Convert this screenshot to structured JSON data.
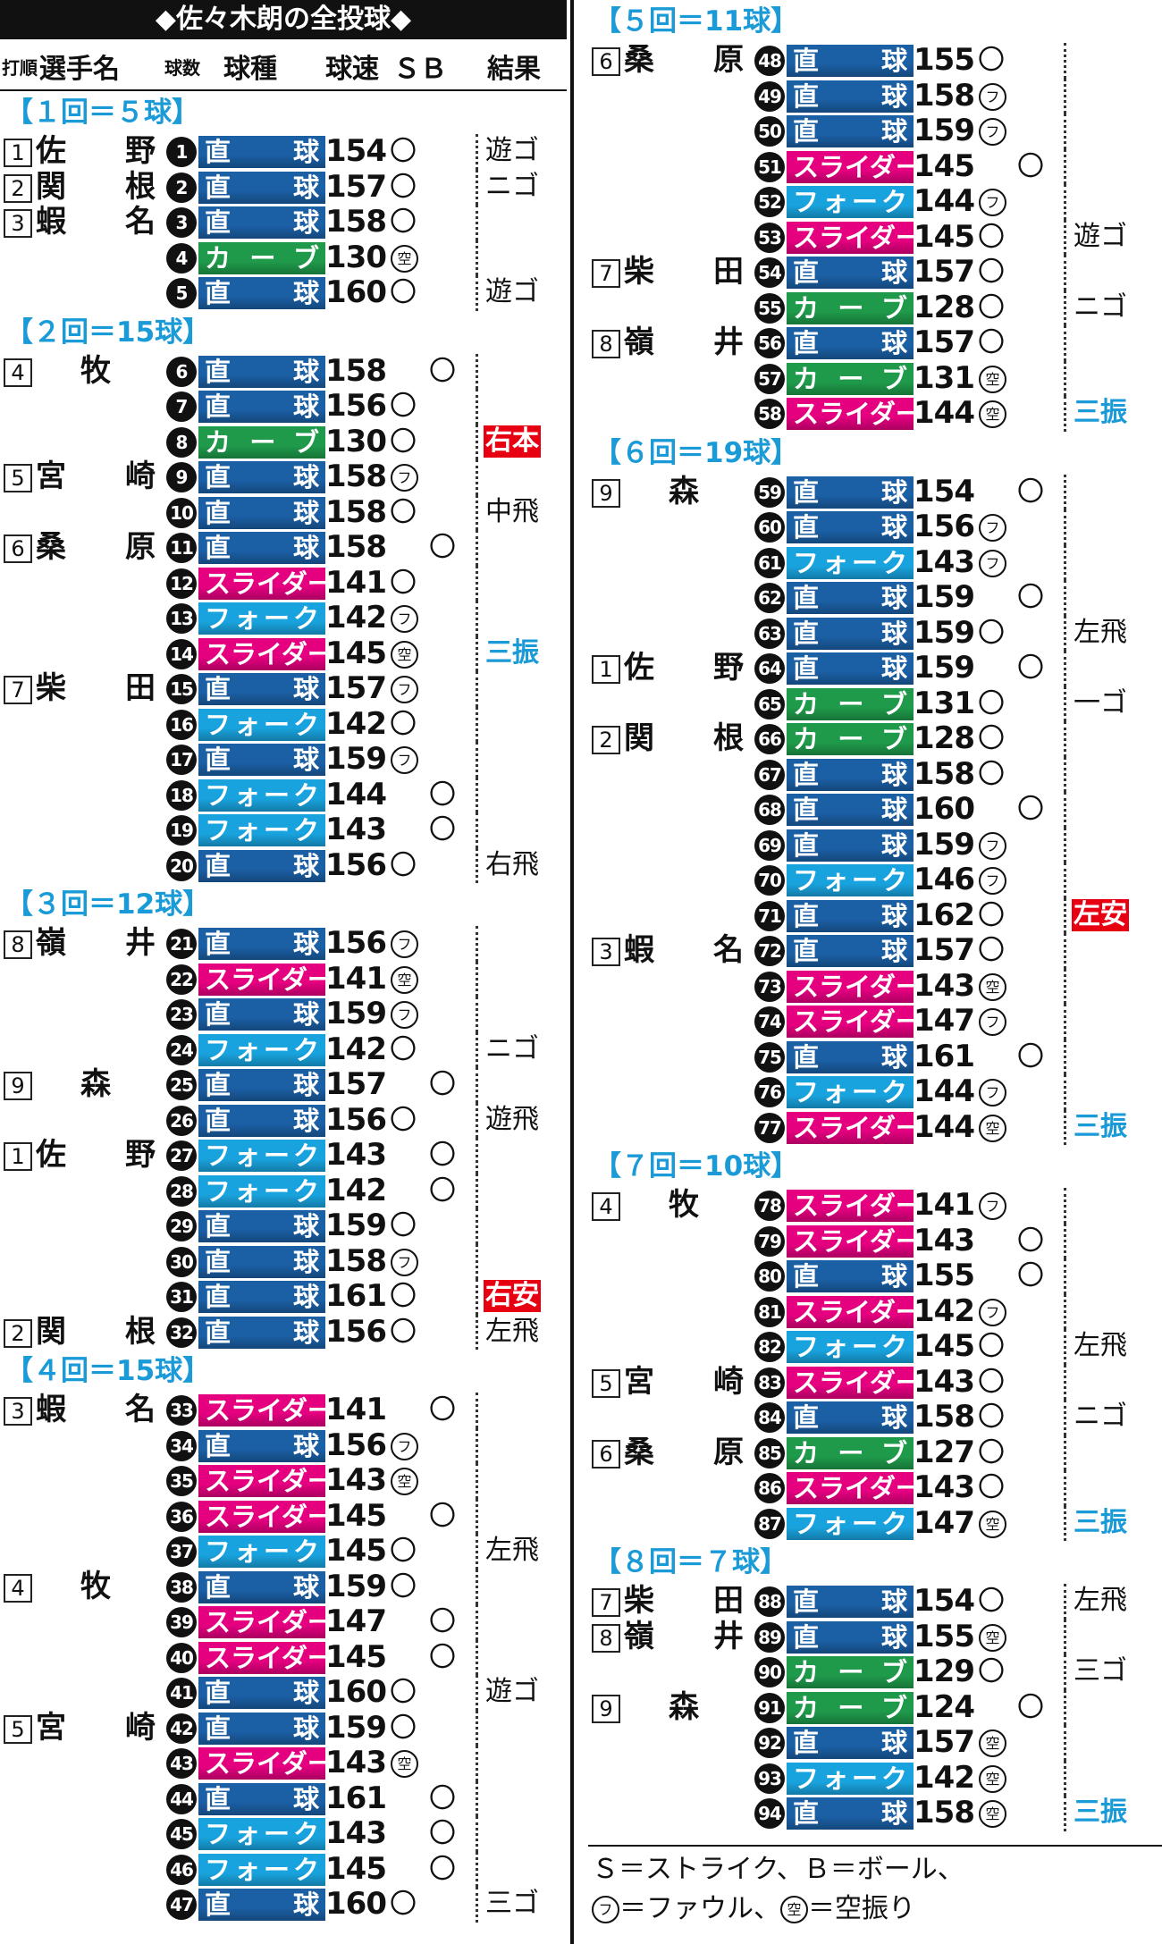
{
  "title": "◆佐々木朗の全投球◆",
  "header": {
    "order": "打順",
    "batter": "選手名",
    "count": "球数",
    "pitch": "球種",
    "speed": "球速",
    "sb": "ＳＢ",
    "result": "結果"
  },
  "pitch_colors": {
    "直球": "#1b5fa4",
    "カーブ": "#1f9a4a",
    "スライダー": "#e4007f",
    "フォーク": "#19a3de"
  },
  "sections": [
    {
      "title": "【１回＝５球】",
      "rows": [
        {
          "o": "1",
          "n": "佐野",
          "no": 1,
          "p": "直球",
          "v": 154,
          "s": "〇",
          "r": "遊ゴ"
        },
        {
          "o": "2",
          "n": "関根",
          "no": 2,
          "p": "直球",
          "v": 157,
          "s": "〇",
          "r": "ニゴ"
        },
        {
          "o": "3",
          "n": "蝦名",
          "no": 3,
          "p": "直球",
          "v": 158,
          "s": "〇"
        },
        {
          "no": 4,
          "p": "カーブ",
          "v": 130,
          "s": "空"
        },
        {
          "no": 5,
          "p": "直球",
          "v": 160,
          "s": "〇",
          "r": "遊ゴ"
        }
      ]
    },
    {
      "title": "【２回＝15球】",
      "rows": [
        {
          "o": "4",
          "n": "牧",
          "no": 6,
          "p": "直球",
          "v": 158,
          "b": "〇"
        },
        {
          "no": 7,
          "p": "直球",
          "v": 156,
          "s": "〇"
        },
        {
          "no": 8,
          "p": "カーブ",
          "v": 130,
          "s": "〇",
          "r": "右本",
          "rbg": "#e60012"
        },
        {
          "o": "5",
          "n": "宮崎",
          "no": 9,
          "p": "直球",
          "v": 158,
          "s": "フ"
        },
        {
          "no": 10,
          "p": "直球",
          "v": 158,
          "s": "〇",
          "r": "中飛"
        },
        {
          "o": "6",
          "n": "桑原",
          "no": 11,
          "p": "直球",
          "v": 158,
          "b": "〇"
        },
        {
          "no": 12,
          "p": "スライダー",
          "v": 141,
          "s": "〇"
        },
        {
          "no": 13,
          "p": "フォーク",
          "v": 142,
          "s": "フ"
        },
        {
          "no": 14,
          "p": "スライダー",
          "v": 145,
          "s": "空",
          "r": "三振",
          "rc": "#1a9ad6"
        },
        {
          "o": "7",
          "n": "柴田",
          "no": 15,
          "p": "直球",
          "v": 157,
          "s": "フ"
        },
        {
          "no": 16,
          "p": "フォーク",
          "v": 142,
          "s": "〇"
        },
        {
          "no": 17,
          "p": "直球",
          "v": 159,
          "s": "フ"
        },
        {
          "no": 18,
          "p": "フォーク",
          "v": 144,
          "b": "〇"
        },
        {
          "no": 19,
          "p": "フォーク",
          "v": 143,
          "b": "〇"
        },
        {
          "no": 20,
          "p": "直球",
          "v": 156,
          "s": "〇",
          "r": "右飛"
        }
      ]
    },
    {
      "title": "【３回＝12球】",
      "rows": [
        {
          "o": "8",
          "n": "嶺井",
          "no": 21,
          "p": "直球",
          "v": 156,
          "s": "フ"
        },
        {
          "no": 22,
          "p": "スライダー",
          "v": 141,
          "s": "空"
        },
        {
          "no": 23,
          "p": "直球",
          "v": 159,
          "s": "フ"
        },
        {
          "no": 24,
          "p": "フォーク",
          "v": 142,
          "s": "〇",
          "r": "ニゴ"
        },
        {
          "o": "9",
          "n": "森",
          "no": 25,
          "p": "直球",
          "v": 157,
          "b": "〇"
        },
        {
          "no": 26,
          "p": "直球",
          "v": 156,
          "s": "〇",
          "r": "遊飛"
        },
        {
          "o": "1",
          "n": "佐野",
          "no": 27,
          "p": "フォーク",
          "v": 143,
          "b": "〇"
        },
        {
          "no": 28,
          "p": "フォーク",
          "v": 142,
          "b": "〇"
        },
        {
          "no": 29,
          "p": "直球",
          "v": 159,
          "s": "〇"
        },
        {
          "no": 30,
          "p": "直球",
          "v": 158,
          "s": "フ"
        },
        {
          "no": 31,
          "p": "直球",
          "v": 161,
          "s": "〇",
          "r": "右安",
          "rbg": "#e60012"
        },
        {
          "o": "2",
          "n": "関根",
          "no": 32,
          "p": "直球",
          "v": 156,
          "s": "〇",
          "r": "左飛"
        }
      ]
    },
    {
      "title": "【４回＝15球】",
      "rows": [
        {
          "o": "3",
          "n": "蝦名",
          "no": 33,
          "p": "スライダー",
          "v": 141,
          "b": "〇"
        },
        {
          "no": 34,
          "p": "直球",
          "v": 156,
          "s": "フ"
        },
        {
          "no": 35,
          "p": "スライダー",
          "v": 143,
          "s": "空"
        },
        {
          "no": 36,
          "p": "スライダー",
          "v": 145,
          "b": "〇"
        },
        {
          "no": 37,
          "p": "フォーク",
          "v": 145,
          "s": "〇",
          "r": "左飛"
        },
        {
          "o": "4",
          "n": "牧",
          "no": 38,
          "p": "直球",
          "v": 159,
          "s": "〇"
        },
        {
          "no": 39,
          "p": "スライダー",
          "v": 147,
          "b": "〇"
        },
        {
          "no": 40,
          "p": "スライダー",
          "v": 145,
          "b": "〇"
        },
        {
          "no": 41,
          "p": "直球",
          "v": 160,
          "s": "〇",
          "r": "遊ゴ"
        },
        {
          "o": "5",
          "n": "宮崎",
          "no": 42,
          "p": "直球",
          "v": 159,
          "s": "〇"
        },
        {
          "no": 43,
          "p": "スライダー",
          "v": 143,
          "s": "空"
        },
        {
          "no": 44,
          "p": "直球",
          "v": 161,
          "b": "〇"
        },
        {
          "no": 45,
          "p": "フォーク",
          "v": 143,
          "b": "〇"
        },
        {
          "no": 46,
          "p": "フォーク",
          "v": 145,
          "b": "〇"
        },
        {
          "no": 47,
          "p": "直球",
          "v": 160,
          "s": "〇",
          "r": "三ゴ"
        }
      ]
    },
    {
      "title": "【５回＝11球】",
      "rows": [
        {
          "o": "6",
          "n": "桑原",
          "no": 48,
          "p": "直球",
          "v": 155,
          "s": "〇"
        },
        {
          "no": 49,
          "p": "直球",
          "v": 158,
          "s": "フ"
        },
        {
          "no": 50,
          "p": "直球",
          "v": 159,
          "s": "フ"
        },
        {
          "no": 51,
          "p": "スライダー",
          "v": 145,
          "b": "〇"
        },
        {
          "no": 52,
          "p": "フォーク",
          "v": 144,
          "s": "フ"
        },
        {
          "no": 53,
          "p": "スライダー",
          "v": 145,
          "s": "〇",
          "r": "遊ゴ"
        },
        {
          "o": "7",
          "n": "柴田",
          "no": 54,
          "p": "直球",
          "v": 157,
          "s": "〇"
        },
        {
          "no": 55,
          "p": "カーブ",
          "v": 128,
          "s": "〇",
          "r": "ニゴ"
        },
        {
          "o": "8",
          "n": "嶺井",
          "no": 56,
          "p": "直球",
          "v": 157,
          "s": "〇"
        },
        {
          "no": 57,
          "p": "カーブ",
          "v": 131,
          "s": "空"
        },
        {
          "no": 58,
          "p": "スライダー",
          "v": 144,
          "s": "空",
          "r": "三振",
          "rc": "#1a9ad6"
        }
      ]
    },
    {
      "title": "【６回＝19球】",
      "rows": [
        {
          "o": "9",
          "n": "森",
          "no": 59,
          "p": "直球",
          "v": 154,
          "b": "〇"
        },
        {
          "no": 60,
          "p": "直球",
          "v": 156,
          "s": "フ"
        },
        {
          "no": 61,
          "p": "フォーク",
          "v": 143,
          "s": "フ"
        },
        {
          "no": 62,
          "p": "直球",
          "v": 159,
          "b": "〇"
        },
        {
          "no": 63,
          "p": "直球",
          "v": 159,
          "s": "〇",
          "r": "左飛"
        },
        {
          "o": "1",
          "n": "佐野",
          "no": 64,
          "p": "直球",
          "v": 159,
          "b": "〇"
        },
        {
          "no": 65,
          "p": "カーブ",
          "v": 131,
          "s": "〇",
          "r": "一ゴ"
        },
        {
          "o": "2",
          "n": "関根",
          "no": 66,
          "p": "カーブ",
          "v": 128,
          "s": "〇"
        },
        {
          "no": 67,
          "p": "直球",
          "v": 158,
          "s": "〇"
        },
        {
          "no": 68,
          "p": "直球",
          "v": 160,
          "b": "〇"
        },
        {
          "no": 69,
          "p": "直球",
          "v": 159,
          "s": "フ"
        },
        {
          "no": 70,
          "p": "フォーク",
          "v": 146,
          "s": "フ"
        },
        {
          "no": 71,
          "p": "直球",
          "v": 162,
          "s": "〇",
          "r": "左安",
          "rbg": "#e60012"
        },
        {
          "o": "3",
          "n": "蝦名",
          "no": 72,
          "p": "直球",
          "v": 157,
          "s": "〇"
        },
        {
          "no": 73,
          "p": "スライダー",
          "v": 143,
          "s": "空"
        },
        {
          "no": 74,
          "p": "スライダー",
          "v": 147,
          "s": "フ"
        },
        {
          "no": 75,
          "p": "直球",
          "v": 161,
          "b": "〇"
        },
        {
          "no": 76,
          "p": "フォーク",
          "v": 144,
          "s": "フ"
        },
        {
          "no": 77,
          "p": "スライダー",
          "v": 144,
          "s": "空",
          "r": "三振",
          "rc": "#1a9ad6"
        }
      ]
    },
    {
      "title": "【７回＝10球】",
      "rows": [
        {
          "o": "4",
          "n": "牧",
          "no": 78,
          "p": "スライダー",
          "v": 141,
          "s": "フ"
        },
        {
          "no": 79,
          "p": "スライダー",
          "v": 143,
          "b": "〇"
        },
        {
          "no": 80,
          "p": "直球",
          "v": 155,
          "b": "〇"
        },
        {
          "no": 81,
          "p": "スライダー",
          "v": 142,
          "s": "フ"
        },
        {
          "no": 82,
          "p": "フォーク",
          "v": 145,
          "s": "〇",
          "r": "左飛"
        },
        {
          "o": "5",
          "n": "宮崎",
          "no": 83,
          "p": "スライダー",
          "v": 143,
          "s": "〇"
        },
        {
          "no": 84,
          "p": "直球",
          "v": 158,
          "s": "〇",
          "r": "ニゴ"
        },
        {
          "o": "6",
          "n": "桑原",
          "no": 85,
          "p": "カーブ",
          "v": 127,
          "s": "〇"
        },
        {
          "no": 86,
          "p": "スライダー",
          "v": 143,
          "s": "〇"
        },
        {
          "no": 87,
          "p": "フォーク",
          "v": 147,
          "s": "空",
          "r": "三振",
          "rc": "#1a9ad6"
        }
      ]
    },
    {
      "title": "【８回＝７球】",
      "rows": [
        {
          "o": "7",
          "n": "柴田",
          "no": 88,
          "p": "直球",
          "v": 154,
          "s": "〇",
          "r": "左飛"
        },
        {
          "o": "8",
          "n": "嶺井",
          "no": 89,
          "p": "直球",
          "v": 155,
          "s": "空"
        },
        {
          "no": 90,
          "p": "カーブ",
          "v": 129,
          "s": "〇",
          "r": "三ゴ"
        },
        {
          "o": "9",
          "n": "森",
          "no": 91,
          "p": "カーブ",
          "v": 124,
          "b": "〇"
        },
        {
          "no": 92,
          "p": "直球",
          "v": 157,
          "s": "空"
        },
        {
          "no": 93,
          "p": "フォーク",
          "v": 142,
          "s": "空"
        },
        {
          "no": 94,
          "p": "直球",
          "v": 158,
          "s": "空",
          "r": "三振",
          "rc": "#1a9ad6"
        }
      ]
    }
  ],
  "note": {
    "line1": "Ｓ＝ストライク、Ｂ＝ボール、",
    "foul_mark": "フ",
    "foul_text": "＝ファウル、",
    "swing_mark": "空",
    "swing_text": "＝空振り"
  }
}
